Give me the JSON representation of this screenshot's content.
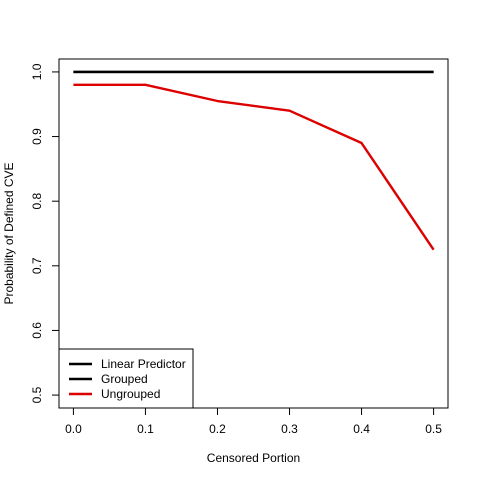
{
  "chart_data": {
    "type": "line",
    "title": "",
    "xlabel": "Censored Portion",
    "ylabel": "Probability of Defined CVE",
    "x": [
      0.0,
      0.1,
      0.2,
      0.3,
      0.4,
      0.5
    ],
    "xlim": [
      -0.02,
      0.52
    ],
    "ylim": [
      0.48,
      1.02
    ],
    "xticks": [
      0.0,
      0.1,
      0.2,
      0.3,
      0.4,
      0.5
    ],
    "xtick_labels": [
      "0.0",
      "0.1",
      "0.2",
      "0.3",
      "0.4",
      "0.5"
    ],
    "yticks": [
      0.5,
      0.6,
      0.7,
      0.8,
      0.9,
      1.0
    ],
    "ytick_labels": [
      "0.5",
      "0.6",
      "0.7",
      "0.8",
      "0.9",
      "1.0"
    ],
    "grid": false,
    "legend_position": "bottom-left",
    "series": [
      {
        "name": "Linear Predictor",
        "color": "#000000",
        "values": [
          1.0,
          1.0,
          1.0,
          1.0,
          1.0,
          1.0
        ]
      },
      {
        "name": "Grouped",
        "color": "#000000",
        "values": [
          1.0,
          1.0,
          1.0,
          1.0,
          1.0,
          1.0
        ]
      },
      {
        "name": "Ungrouped",
        "color": "#dd0000",
        "values": [
          0.98,
          0.98,
          0.955,
          0.94,
          0.89,
          0.725
        ]
      }
    ]
  }
}
